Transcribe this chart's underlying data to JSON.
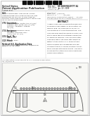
{
  "page_bg": "#ffffff",
  "barcode_color": "#111111",
  "text_dark": "#222222",
  "text_med": "#555555",
  "line_color": "#888888",
  "diagram_line": "#444444",
  "electrode_fill": "#cccccc",
  "np_color": "#888888",
  "arch_line": "#555555",
  "wave_color": "#666666"
}
